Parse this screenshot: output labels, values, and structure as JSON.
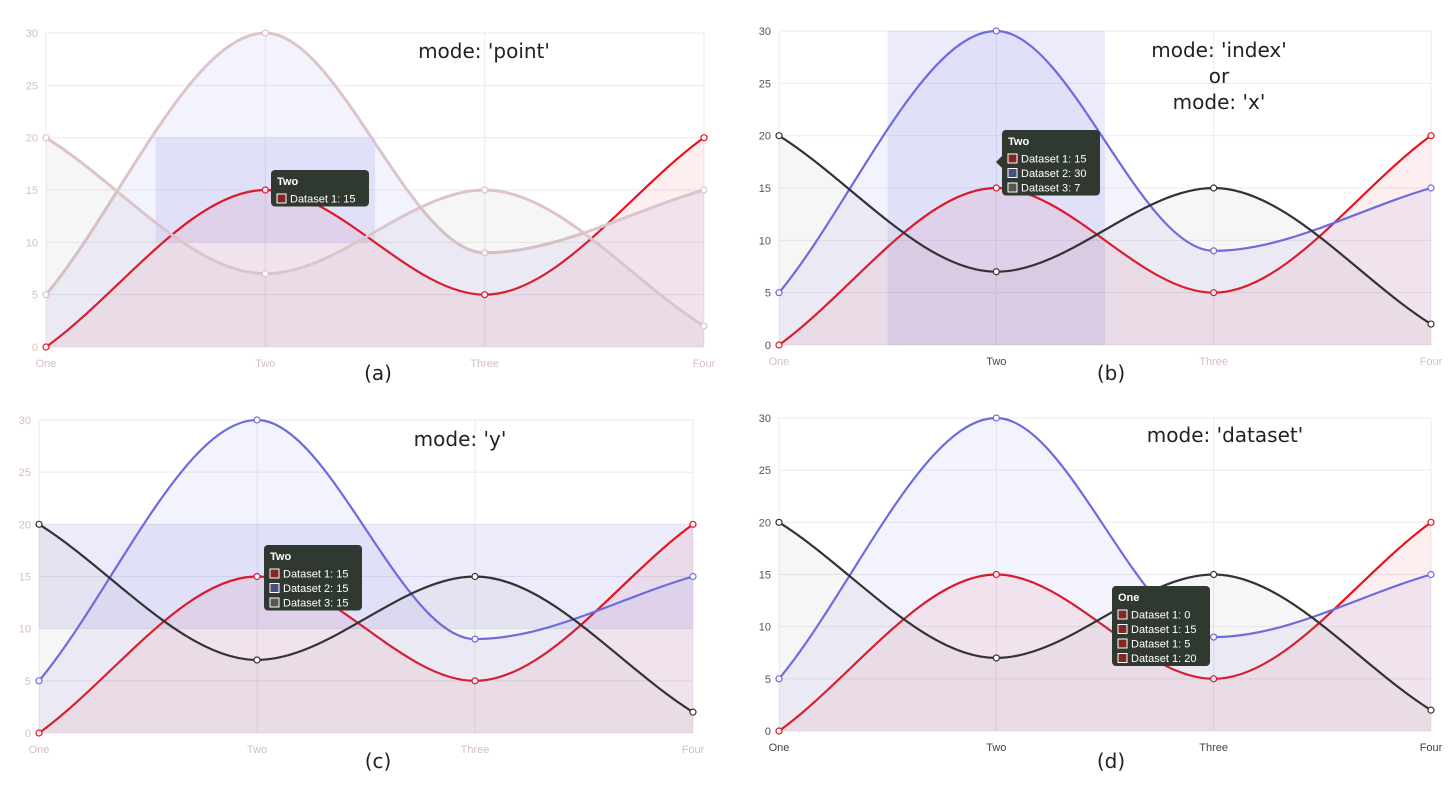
{
  "chart_data": [
    {
      "type": "line",
      "panel_label": "(a)",
      "annotation": [
        "mode: 'point'"
      ],
      "x": [
        "One",
        "Two",
        "Three",
        "Four"
      ],
      "ylim": [
        0,
        30
      ],
      "yticks": [
        0,
        5,
        10,
        15,
        20,
        25,
        30
      ],
      "grid": true,
      "series": [
        {
          "values": [
            0,
            15,
            5,
            20
          ],
          "color": "#e8121c"
        },
        {
          "values": [
            5,
            30,
            9,
            15
          ],
          "color": "#6b6be0"
        },
        {
          "values": [
            20,
            7,
            15,
            2
          ],
          "color": "#333333"
        }
      ],
      "highlight": {
        "type": "point",
        "series": [
          0
        ],
        "index": 1
      },
      "tooltip": {
        "title": "Two",
        "items": [
          {
            "label": "Dataset 1: 15",
            "series": 0
          }
        ]
      }
    },
    {
      "type": "line",
      "panel_label": "(b)",
      "annotation": [
        "mode: 'index'",
        "or",
        "mode: 'x'"
      ],
      "x": [
        "One",
        "Two",
        "Three",
        "Four"
      ],
      "ylim": [
        0,
        30
      ],
      "yticks": [
        0,
        5,
        10,
        15,
        20,
        25,
        30
      ],
      "grid": true,
      "series": [
        {
          "values": [
            0,
            15,
            5,
            20
          ],
          "color": "#e8121c"
        },
        {
          "values": [
            5,
            30,
            9,
            15
          ],
          "color": "#6b6be0"
        },
        {
          "values": [
            20,
            7,
            15,
            2
          ],
          "color": "#333333"
        }
      ],
      "highlight": {
        "type": "index",
        "series": [
          0,
          1,
          2
        ],
        "index": 1
      },
      "tooltip": {
        "title": "Two",
        "items": [
          {
            "label": "Dataset 1: 15",
            "series": 0
          },
          {
            "label": "Dataset 2: 30",
            "series": 1
          },
          {
            "label": "Dataset 3: 7",
            "series": 2
          }
        ]
      }
    },
    {
      "type": "line",
      "panel_label": "(c)",
      "annotation": [
        "mode: 'y'"
      ],
      "x": [
        "One",
        "Two",
        "Three",
        "Four"
      ],
      "ylim": [
        0,
        30
      ],
      "yticks": [
        0,
        5,
        10,
        15,
        20,
        25,
        30
      ],
      "grid": true,
      "series": [
        {
          "values": [
            0,
            15,
            5,
            20
          ],
          "color": "#e8121c"
        },
        {
          "values": [
            5,
            30,
            9,
            15
          ],
          "color": "#6b6be0"
        },
        {
          "values": [
            20,
            7,
            15,
            2
          ],
          "color": "#333333"
        }
      ],
      "highlight": {
        "type": "y",
        "series": [
          0,
          1,
          2
        ],
        "index": 1
      },
      "tooltip": {
        "title": "Two",
        "items": [
          {
            "label": "Dataset 1: 15",
            "series": 0
          },
          {
            "label": "Dataset 2: 15",
            "series": 1
          },
          {
            "label": "Dataset 3: 15",
            "series": 2
          }
        ]
      }
    },
    {
      "type": "line",
      "panel_label": "(d)",
      "annotation": [
        "mode: 'dataset'"
      ],
      "x": [
        "One",
        "Two",
        "Three",
        "Four"
      ],
      "ylim": [
        0,
        30
      ],
      "yticks": [
        0,
        5,
        10,
        15,
        20,
        25,
        30
      ],
      "grid": true,
      "series": [
        {
          "values": [
            0,
            15,
            5,
            20
          ],
          "color": "#e8121c"
        },
        {
          "values": [
            5,
            30,
            9,
            15
          ],
          "color": "#6b6be0"
        },
        {
          "values": [
            20,
            7,
            15,
            2
          ],
          "color": "#333333"
        }
      ],
      "highlight": {
        "type": "dataset",
        "series": [
          0,
          1,
          2
        ],
        "index": 0
      },
      "tooltip": {
        "title": "One",
        "items": [
          {
            "label": "Dataset 1: 0",
            "series": 0
          },
          {
            "label": "Dataset 1: 15",
            "series": 0
          },
          {
            "label": "Dataset 1: 5",
            "series": 0
          },
          {
            "label": "Dataset 1: 20",
            "series": 0
          }
        ]
      }
    }
  ]
}
